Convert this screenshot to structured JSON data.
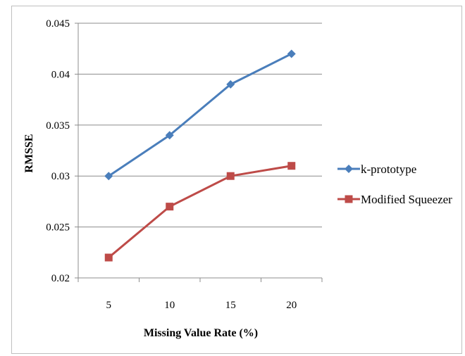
{
  "chart_data": {
    "type": "line",
    "title": "",
    "xlabel": "Missing Value Rate (%)",
    "ylabel": "RMSSE",
    "categories": [
      "5",
      "10",
      "15",
      "20"
    ],
    "ylim": [
      0.02,
      0.045
    ],
    "yticks": [
      "0.02",
      "0.025",
      "0.03",
      "0.035",
      "0.04",
      "0.045"
    ],
    "grid": "horizontal",
    "legend_position": "right",
    "series": [
      {
        "name": "k-prototype",
        "values": [
          0.03,
          0.034,
          0.039,
          0.042
        ],
        "color": "#4a7ebb",
        "marker": "diamond"
      },
      {
        "name": "Modified Squeezer",
        "values": [
          0.022,
          0.027,
          0.03,
          0.031
        ],
        "color": "#be4b48",
        "marker": "square"
      }
    ]
  }
}
